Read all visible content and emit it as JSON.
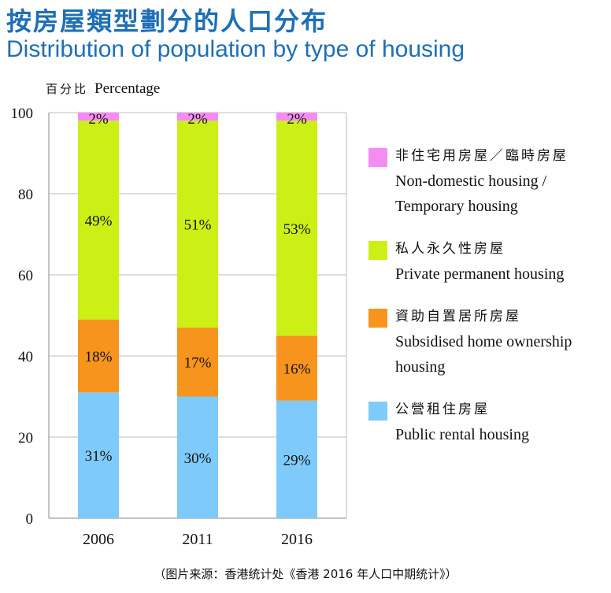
{
  "title_zh": "按房屋類型劃分的人口分布",
  "title_en": "Distribution of population by type of housing",
  "source": "（图片来源：香港统计处《香港 2016 年人口中期统计》）",
  "chart_data": {
    "type": "bar",
    "stacked": true,
    "title": "Distribution of population by type of housing",
    "ylabel_zh": "百分比",
    "ylabel_en": "Percentage",
    "ylim": [
      0,
      100
    ],
    "yticks": [
      0,
      20,
      40,
      60,
      80,
      100
    ],
    "grid": true,
    "legend_position": "right",
    "categories": [
      "2006",
      "2011",
      "2016"
    ],
    "series": [
      {
        "name_zh": "公營租住房屋",
        "name_en": "Public rental housing",
        "color": "#7ecbfb",
        "values": [
          31,
          30,
          29
        ],
        "labels": [
          "31%",
          "30%",
          "29%"
        ]
      },
      {
        "name_zh": "資助自置居所房屋",
        "name_en": "Subsidised home ownership housing",
        "color": "#f7941d",
        "values": [
          18,
          17,
          16
        ],
        "labels": [
          "18%",
          "17%",
          "16%"
        ]
      },
      {
        "name_zh": "私人永久性房屋",
        "name_en": "Private permanent housing",
        "color": "#ccf015",
        "values": [
          49,
          51,
          53
        ],
        "labels": [
          "49%",
          "51%",
          "53%"
        ]
      },
      {
        "name_zh": "非住宅用房屋／臨時房屋",
        "name_en": "Non-domestic housing / Temporary housing",
        "color": "#f58cf1",
        "values": [
          2,
          2,
          2
        ],
        "labels": [
          "2%",
          "2%",
          "2%"
        ]
      }
    ]
  }
}
